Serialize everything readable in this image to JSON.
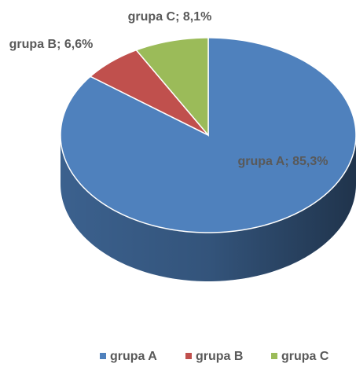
{
  "chart_data": {
    "type": "pie",
    "categories": [
      "grupa A",
      "grupa B",
      "grupa C"
    ],
    "values": [
      85.3,
      6.6,
      8.1
    ],
    "value_labels": [
      "grupa A; 85,3%",
      "grupa B; 6,6%",
      "grupa C; 8,1%"
    ],
    "colors": [
      "#4f81bd",
      "#c0504d",
      "#9bbb59"
    ],
    "legend": "bottom"
  }
}
